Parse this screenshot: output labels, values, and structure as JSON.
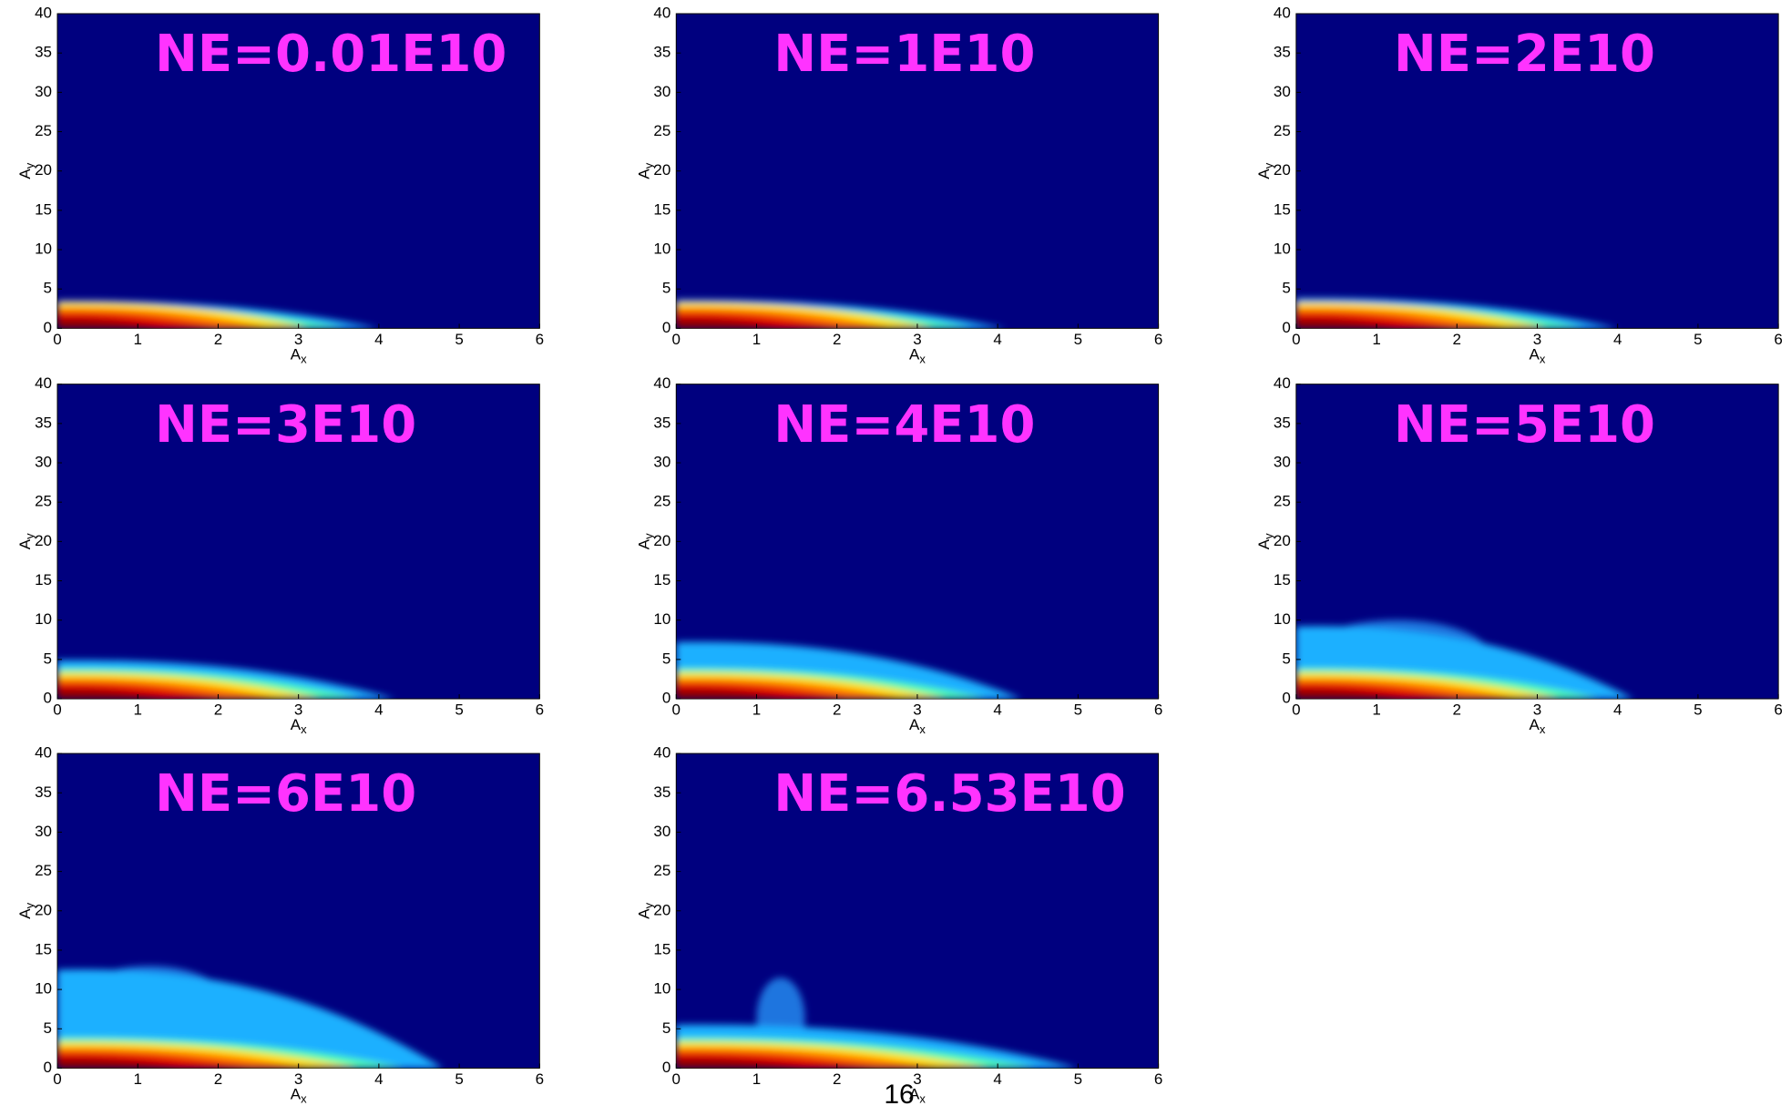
{
  "chart_data": [
    {
      "type": "heatmap",
      "title": "NE=0.01E10",
      "xlabel": "Ax",
      "ylabel": "Ay",
      "xlim": [
        0,
        6
      ],
      "ylim": [
        0,
        40
      ],
      "xticks": [
        0,
        1,
        2,
        3,
        4,
        5,
        6
      ],
      "yticks": [
        0,
        5,
        10,
        15,
        20,
        25,
        30,
        35,
        40
      ]
    },
    {
      "type": "heatmap",
      "title": "NE=1E10",
      "xlabel": "Ax",
      "ylabel": "Ay",
      "xlim": [
        0,
        6
      ],
      "ylim": [
        0,
        40
      ],
      "xticks": [
        0,
        1,
        2,
        3,
        4,
        5,
        6
      ],
      "yticks": [
        0,
        5,
        10,
        15,
        20,
        25,
        30,
        35,
        40
      ]
    },
    {
      "type": "heatmap",
      "title": "NE=2E10",
      "xlabel": "Ax",
      "ylabel": "Ay",
      "xlim": [
        0,
        6
      ],
      "ylim": [
        0,
        40
      ],
      "xticks": [
        0,
        1,
        2,
        3,
        4,
        5,
        6
      ],
      "yticks": [
        0,
        5,
        10,
        15,
        20,
        25,
        30,
        35,
        40
      ]
    },
    {
      "type": "heatmap",
      "title": "NE=3E10",
      "xlabel": "Ax",
      "ylabel": "Ay",
      "xlim": [
        0,
        6
      ],
      "ylim": [
        0,
        40
      ],
      "xticks": [
        0,
        1,
        2,
        3,
        4,
        5,
        6
      ],
      "yticks": [
        0,
        5,
        10,
        15,
        20,
        25,
        30,
        35,
        40
      ]
    },
    {
      "type": "heatmap",
      "title": "NE=4E10",
      "xlabel": "Ax",
      "ylabel": "Ay",
      "xlim": [
        0,
        6
      ],
      "ylim": [
        0,
        40
      ],
      "xticks": [
        0,
        1,
        2,
        3,
        4,
        5,
        6
      ],
      "yticks": [
        0,
        5,
        10,
        15,
        20,
        25,
        30,
        35,
        40
      ]
    },
    {
      "type": "heatmap",
      "title": "NE=5E10",
      "xlabel": "Ax",
      "ylabel": "Ay",
      "xlim": [
        0,
        6
      ],
      "ylim": [
        0,
        40
      ],
      "xticks": [
        0,
        1,
        2,
        3,
        4,
        5,
        6
      ],
      "yticks": [
        0,
        5,
        10,
        15,
        20,
        25,
        30,
        35,
        40
      ]
    },
    {
      "type": "heatmap",
      "title": "NE=6E10",
      "xlabel": "Ax",
      "ylabel": "Ay",
      "xlim": [
        0,
        6
      ],
      "ylim": [
        0,
        40
      ],
      "xticks": [
        0,
        1,
        2,
        3,
        4,
        5,
        6
      ],
      "yticks": [
        0,
        5,
        10,
        15,
        20,
        25,
        30,
        35,
        40
      ]
    },
    {
      "type": "heatmap",
      "title": "NE=6.53E10",
      "xlabel": "Ax",
      "ylabel": "Ay",
      "xlim": [
        0,
        6
      ],
      "ylim": [
        0,
        40
      ],
      "xticks": [
        0,
        1,
        2,
        3,
        4,
        5,
        6
      ],
      "yticks": [
        0,
        5,
        10,
        15,
        20,
        25,
        30,
        35,
        40
      ]
    }
  ],
  "page_number": "16"
}
